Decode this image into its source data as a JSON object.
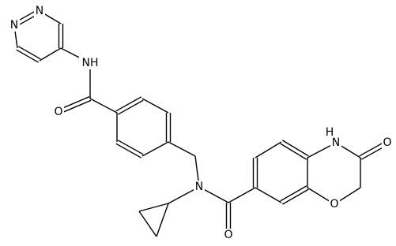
{
  "atoms": [
    {
      "label": "N"
    },
    {
      "label": "N"
    },
    {
      "label": "NH"
    },
    {
      "label": "O"
    },
    {
      "label": "N"
    },
    {
      "label": "O"
    },
    {
      "label": "N",
      "h": "H"
    },
    {
      "label": "O"
    },
    {
      "label": "O"
    }
  ]
}
